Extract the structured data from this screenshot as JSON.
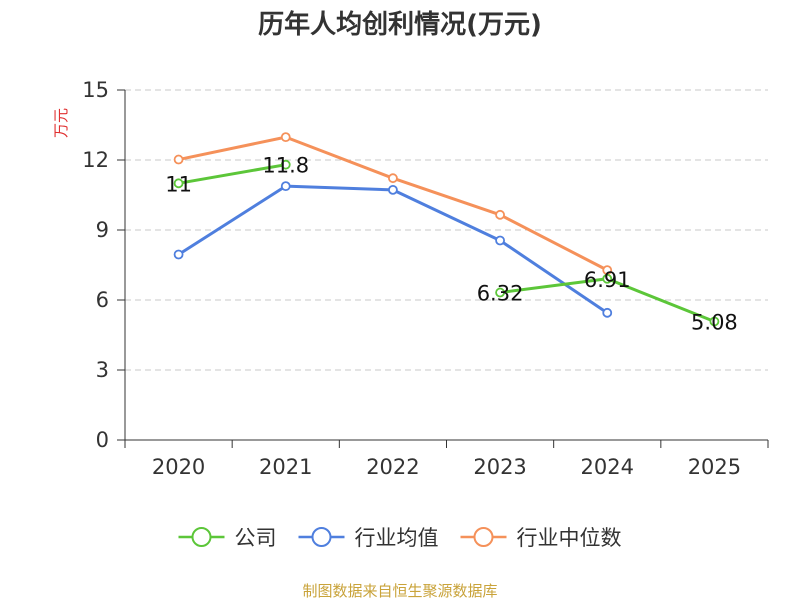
{
  "chart_data": {
    "type": "line",
    "title": "历年人均创利情况(万元)",
    "ylabel": "万元",
    "xlabel": "",
    "categories": [
      "2020",
      "2021",
      "2022",
      "2023",
      "2024",
      "2025"
    ],
    "ylim": [
      0,
      15
    ],
    "yticks": [
      0,
      3,
      6,
      9,
      12,
      15
    ],
    "grid": true,
    "legend_position": "bottom",
    "series": [
      {
        "name": "公司",
        "color": "#5cc639",
        "values": [
          11,
          11.8,
          null,
          6.32,
          6.91,
          5.08
        ],
        "labels": [
          "11",
          "11.8",
          null,
          "6.32",
          "6.91",
          "5.08"
        ]
      },
      {
        "name": "行业均值",
        "color": "#4f7fde",
        "values": [
          7.95,
          10.88,
          10.72,
          8.55,
          5.45,
          null
        ]
      },
      {
        "name": "行业中位数",
        "color": "#f5915a",
        "values": [
          12.02,
          12.98,
          11.22,
          9.65,
          7.28,
          null
        ]
      }
    ]
  },
  "source_text": "制图数据来自恒生聚源数据库"
}
